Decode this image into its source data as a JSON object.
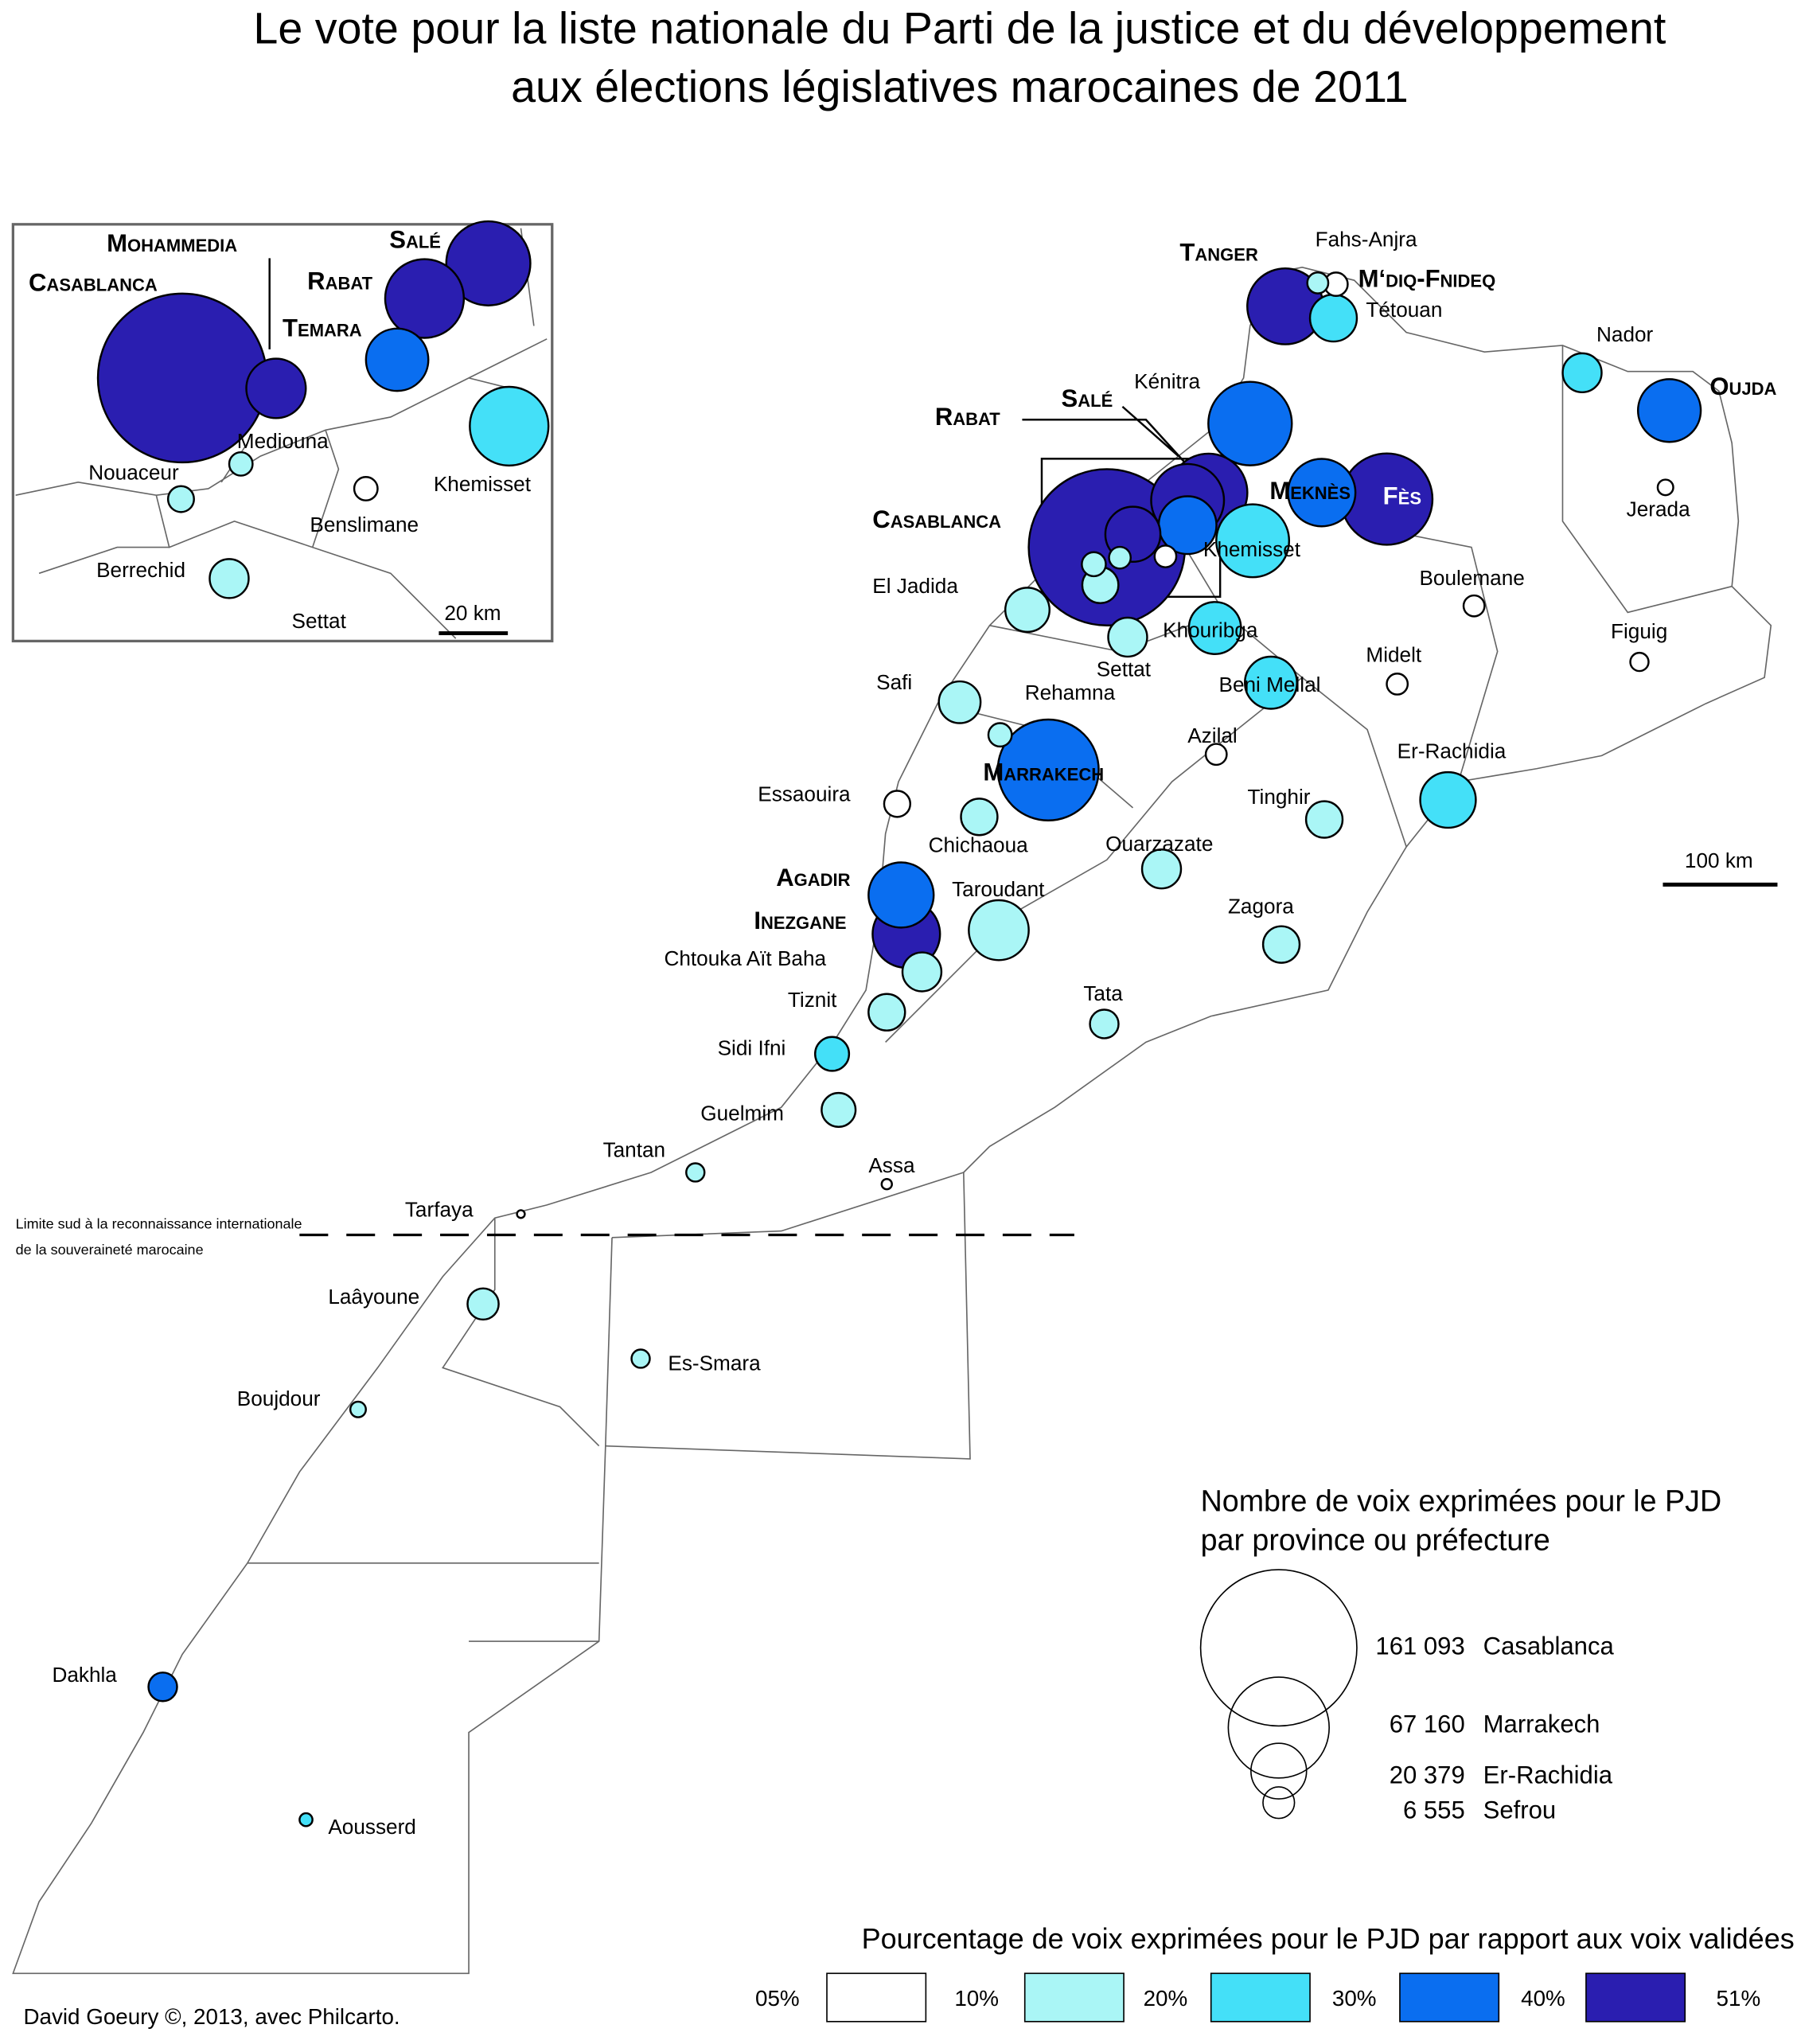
{
  "title_lines": [
    "Le vote pour la liste nationale du Parti de la justice et du développement",
    "aux élections législatives marocaines de 2011"
  ],
  "places": [
    {
      "name": "Casablanca",
      "votes": 161093,
      "pct": 45
    },
    {
      "name": "Mohammedia",
      "votes": 20000,
      "pct": 45
    },
    {
      "name": "Rabat",
      "votes": 35000,
      "pct": 45
    },
    {
      "name": "Salé",
      "votes": 40000,
      "pct": 45
    },
    {
      "name": "Temara",
      "votes": 22000,
      "pct": 35
    },
    {
      "name": "Kénitra",
      "votes": 46000,
      "pct": 35
    },
    {
      "name": "Khemisset",
      "votes": 35000,
      "pct": 25
    },
    {
      "name": "Meknès",
      "votes": 30000,
      "pct": 38
    },
    {
      "name": "Fès",
      "votes": 55000,
      "pct": 45
    },
    {
      "name": "Tanger",
      "votes": 38000,
      "pct": 45
    },
    {
      "name": "Tétouan",
      "votes": 14500,
      "pct": 25
    },
    {
      "name": "Fahs-Anjra",
      "votes": 2900,
      "pct": 12
    },
    {
      "name": "M‘diq-Fnideq",
      "votes": 3600,
      "pct": 8
    },
    {
      "name": "Oujda",
      "votes": 26000,
      "pct": 38
    },
    {
      "name": "Nador",
      "votes": 10000,
      "pct": 25
    },
    {
      "name": "Jerada",
      "votes": 1600,
      "pct": 7
    },
    {
      "name": "Boulemane",
      "votes": 2900,
      "pct": 7
    },
    {
      "name": "Figuig",
      "votes": 2200,
      "pct": 7
    },
    {
      "name": "Midelt",
      "votes": 2900,
      "pct": 8
    },
    {
      "name": "Er-Rachidia",
      "votes": 20379,
      "pct": 25
    },
    {
      "name": "Tinghir",
      "votes": 8800,
      "pct": 15
    },
    {
      "name": "Zagora",
      "votes": 8800,
      "pct": 15
    },
    {
      "name": "Ouarzazate",
      "votes": 10000,
      "pct": 15
    },
    {
      "name": "Tata",
      "votes": 5400,
      "pct": 15
    },
    {
      "name": "Assa",
      "votes": 700,
      "pct": 8
    },
    {
      "name": "Guelmim",
      "votes": 7600,
      "pct": 15
    },
    {
      "name": "Sidi Ifni",
      "votes": 7600,
      "pct": 25
    },
    {
      "name": "Tiznit",
      "votes": 8800,
      "pct": 15
    },
    {
      "name": "Chtouka Aït Baha",
      "votes": 10000,
      "pct": 15
    },
    {
      "name": "Inezgane",
      "votes": 30000,
      "pct": 45
    },
    {
      "name": "Agadir",
      "votes": 28000,
      "pct": 38
    },
    {
      "name": "Taroudant",
      "votes": 23700,
      "pct": 15
    },
    {
      "name": "Chichaoua",
      "votes": 8800,
      "pct": 15
    },
    {
      "name": "Essaouira",
      "votes": 4500,
      "pct": 8
    },
    {
      "name": "Marrakech",
      "votes": 67160,
      "pct": 38
    },
    {
      "name": "Safi",
      "votes": 11500,
      "pct": 15
    },
    {
      "name": "Rehamna",
      "votes": 3600,
      "pct": 15
    },
    {
      "name": "El Jadida",
      "votes": 12900,
      "pct": 15
    },
    {
      "name": "Settat",
      "votes": 10000,
      "pct": 15
    },
    {
      "name": "Khouribga",
      "votes": 17900,
      "pct": 25
    },
    {
      "name": "Beni Mellal",
      "votes": 17900,
      "pct": 25
    },
    {
      "name": "Azilal",
      "votes": 2900,
      "pct": 8
    },
    {
      "name": "Tantan",
      "votes": 2200,
      "pct": 15
    },
    {
      "name": "Tarfaya",
      "votes": 400,
      "pct": 8
    },
    {
      "name": "Laâyoune",
      "votes": 6400,
      "pct": 15
    },
    {
      "name": "Boujdour",
      "votes": 1600,
      "pct": 15
    },
    {
      "name": "Es-Smara",
      "votes": 2200,
      "pct": 15
    },
    {
      "name": "Dakhla",
      "votes": 5400,
      "pct": 38
    },
    {
      "name": "Aousserd",
      "votes": 1100,
      "pct": 25
    },
    {
      "name": "Mediouna",
      "votes": 3100,
      "pct": 15
    },
    {
      "name": "Nouaceur",
      "votes": 3800,
      "pct": 15
    },
    {
      "name": "Benslimane",
      "votes": 3100,
      "pct": 8
    },
    {
      "name": "Berrechid",
      "votes": 8600,
      "pct": 15
    }
  ],
  "legend_size": {
    "title_lines": [
      "Nombre de voix exprimées pour le PJD",
      "par province ou préfecture"
    ],
    "items": [
      {
        "value": 161093,
        "label": "161 093",
        "name": "Casablanca"
      },
      {
        "value": 67160,
        "label": "67 160",
        "name": "Marrakech"
      },
      {
        "value": 20379,
        "label": "20 379",
        "name": "Er-Rachidia"
      },
      {
        "value": 6555,
        "label": "6 555",
        "name": "Sefrou"
      }
    ]
  },
  "legend_color": {
    "title": "Pourcentage de voix exprimées pour le PJD par rapport aux voix validées",
    "breaks": [
      {
        "value": 5,
        "label": "05%"
      },
      {
        "value": 10,
        "label": "10%"
      },
      {
        "value": 20,
        "label": "20%"
      },
      {
        "value": 30,
        "label": "30%"
      },
      {
        "value": 40,
        "label": "40%"
      },
      {
        "value": 51,
        "label": "51%"
      }
    ],
    "colors": [
      "#ffffff",
      "#aaf6f6",
      "#44e0f8",
      "#0a6ef0",
      "#2a1eb0"
    ]
  },
  "scale_main": "100 km",
  "scale_inset": "20 km",
  "border_note": [
    "Limite sud à la reconnaissance internationale",
    "de la souveraineté marocaine"
  ],
  "credit": "David Goeury ©, 2013, avec Philcarto."
}
